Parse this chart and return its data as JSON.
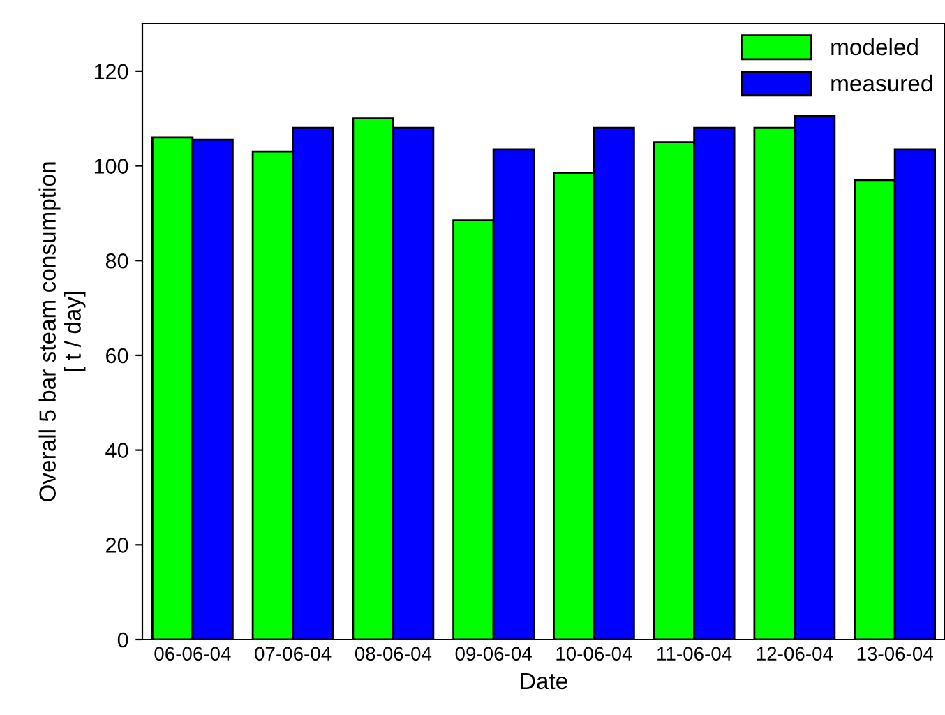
{
  "chart_data": {
    "type": "bar",
    "xlabel": "Date",
    "ylabel": "Overall 5 bar steam consumption\n[ t / day]",
    "categories": [
      "06-06-04",
      "07-06-04",
      "08-06-04",
      "09-06-04",
      "10-06-04",
      "11-06-04",
      "12-06-04",
      "13-06-04"
    ],
    "series": [
      {
        "name": "modeled",
        "color": "#00ff00",
        "values": [
          106,
          103,
          110,
          88.5,
          98.5,
          105,
          108,
          97
        ]
      },
      {
        "name": "measured",
        "color": "#0000ff",
        "values": [
          105.5,
          108,
          108,
          103.5,
          108,
          108,
          110.5,
          103.5
        ]
      }
    ],
    "ylim": [
      0,
      130
    ],
    "yticks": [
      0,
      20,
      40,
      60,
      80,
      100,
      120
    ],
    "grid": false,
    "legend": "top right"
  }
}
